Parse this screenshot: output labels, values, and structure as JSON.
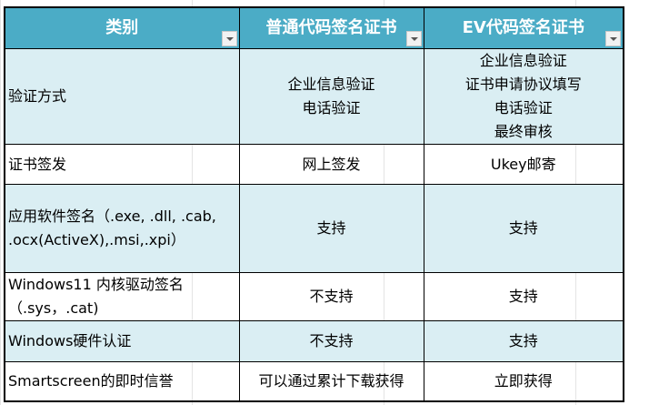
{
  "header": {
    "columns": [
      "类别",
      "普通代码签名证书",
      "EV代码签名证书"
    ],
    "filter_icon": "chevron-down-icon"
  },
  "colors": {
    "header_bg": "#4bacc6",
    "header_text": "#ffffff",
    "band_bg": "#daeef3"
  },
  "rows": [
    {
      "category": "验证方式",
      "standard": [
        "企业信息验证",
        "电话验证"
      ],
      "ev": [
        "企业信息验证",
        "证书申请协议填写",
        "电话验证",
        "最终审核"
      ]
    },
    {
      "category": "证书签发",
      "standard": [
        "网上签发"
      ],
      "ev": [
        "Ukey邮寄"
      ]
    },
    {
      "category": "应用软件签名（.exe, .dll, .cab, .ocx(ActiveX),.msi,.xpi）",
      "standard": [
        "支持"
      ],
      "ev": [
        "支持"
      ]
    },
    {
      "category": "Windows11 内核驱动签名（.sys，.cat)",
      "standard": [
        "不支持"
      ],
      "ev": [
        "支持"
      ]
    },
    {
      "category": "Windows硬件认证",
      "standard": [
        "不支持"
      ],
      "ev": [
        "支持"
      ]
    },
    {
      "category": "Smartscreen的即时信誉",
      "standard": [
        "可以通过累计下载获得"
      ],
      "ev": [
        "立即获得"
      ]
    }
  ]
}
